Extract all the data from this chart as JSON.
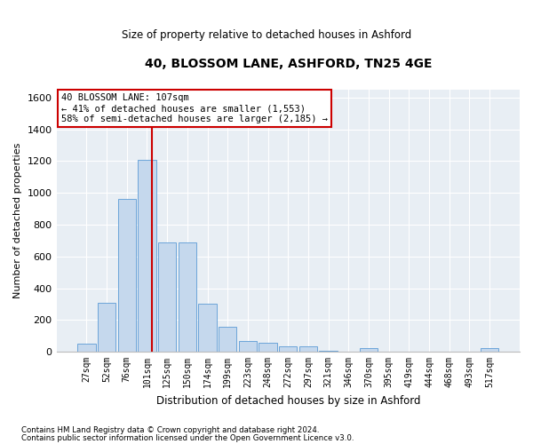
{
  "title": "40, BLOSSOM LANE, ASHFORD, TN25 4GE",
  "subtitle": "Size of property relative to detached houses in Ashford",
  "xlabel": "Distribution of detached houses by size in Ashford",
  "ylabel": "Number of detached properties",
  "bar_color": "#c5d8ed",
  "bar_edge_color": "#5b9bd5",
  "bg_color": "#e8eef4",
  "categories": [
    "27sqm",
    "52sqm",
    "76sqm",
    "101sqm",
    "125sqm",
    "150sqm",
    "174sqm",
    "199sqm",
    "223sqm",
    "248sqm",
    "272sqm",
    "297sqm",
    "321sqm",
    "346sqm",
    "370sqm",
    "395sqm",
    "419sqm",
    "444sqm",
    "468sqm",
    "493sqm",
    "517sqm"
  ],
  "values": [
    50,
    310,
    960,
    1210,
    690,
    690,
    305,
    155,
    70,
    55,
    35,
    35,
    5,
    0,
    20,
    0,
    0,
    0,
    0,
    0,
    20
  ],
  "ylim": [
    0,
    1650
  ],
  "yticks": [
    0,
    200,
    400,
    600,
    800,
    1000,
    1200,
    1400,
    1600
  ],
  "property_label": "40 BLOSSOM LANE: 107sqm",
  "annotation_line1": "← 41% of detached houses are smaller (1,553)",
  "annotation_line2": "58% of semi-detached houses are larger (2,185) →",
  "vline_color": "#cc0000",
  "vline_x": 3.24,
  "footnote1": "Contains HM Land Registry data © Crown copyright and database right 2024.",
  "footnote2": "Contains public sector information licensed under the Open Government Licence v3.0."
}
